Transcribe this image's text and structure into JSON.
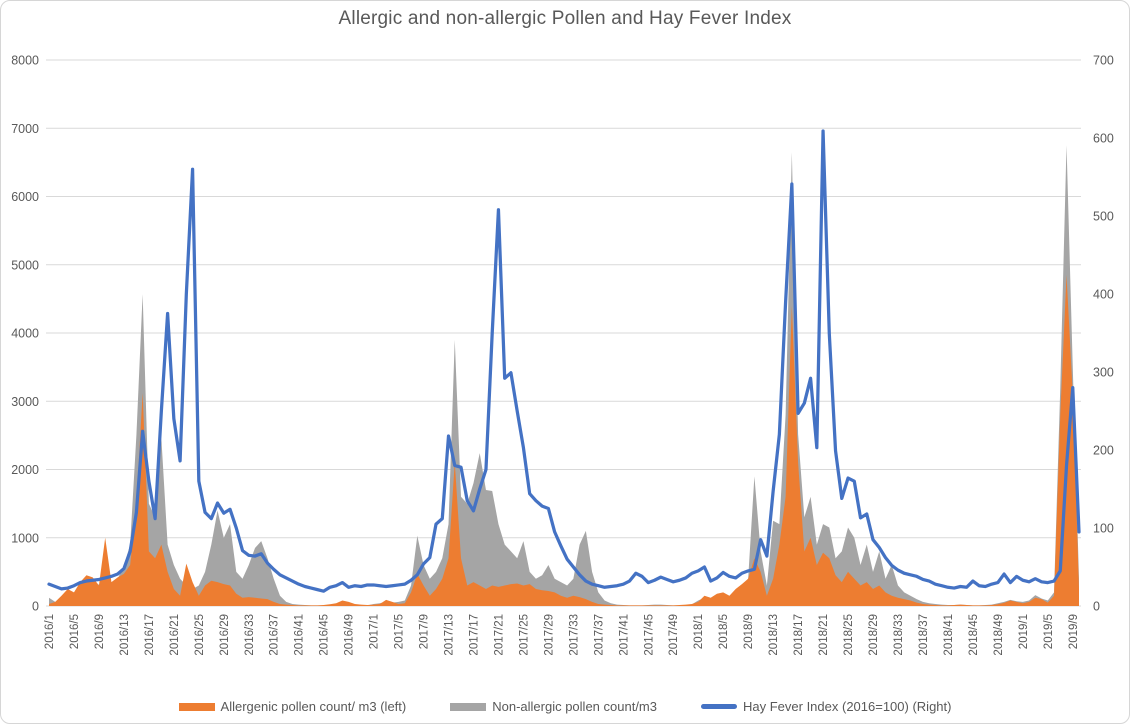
{
  "title": "Allergic and non-allergic Pollen and Hay Fever Index",
  "colors": {
    "allergenic": "#ED7D31",
    "non_allergic": "#A5A5A5",
    "hay_fever": "#4472C4",
    "gridline": "#D9D9D9",
    "axis_text": "#595959"
  },
  "legend": [
    {
      "label": "Allergenic pollen count/ m3 (left)",
      "color": "#ED7D31",
      "shape": "area"
    },
    {
      "label": "Non-allergic pollen count/m3",
      "color": "#A5A5A5",
      "shape": "area"
    },
    {
      "label": "Hay Fever Index (2016=100) (Right)",
      "color": "#4472C4",
      "shape": "line"
    }
  ],
  "chart_data": {
    "type": "area",
    "subtype": "combo-area-line-weekly",
    "title": "Allergic and non-allergic Pollen and Hay Fever Index",
    "points": 166,
    "x_start": "2016 week 1",
    "x_end": "2019 week 10",
    "weeks_per_tick": 4,
    "grid": "horizontal-only",
    "legend_position": "bottom-center",
    "left_axis": {
      "max": 8000,
      "ticks": [
        0,
        1000,
        2000,
        3000,
        4000,
        5000,
        6000,
        7000,
        8000
      ]
    },
    "right_axis": {
      "max": 700,
      "ticks": [
        0,
        100,
        200,
        300,
        400,
        500,
        600,
        700
      ]
    },
    "x_tick_labels": [
      "2016/1",
      "2016/5",
      "2016/9",
      "2016/13",
      "2016/17",
      "2016/21",
      "2016/25",
      "2016/29",
      "2016/33",
      "2016/37",
      "2016/41",
      "2016/45",
      "2016/49",
      "2017/1",
      "2017/5",
      "2017/9",
      "2017/13",
      "2017/17",
      "2017/21",
      "2017/25",
      "2017/29",
      "2017/33",
      "2017/37",
      "2017/41",
      "2017/45",
      "2017/49",
      "2018/1",
      "2018/5",
      "2018/9",
      "2018/13",
      "2018/17",
      "2018/21",
      "2018/25",
      "2018/29",
      "2018/33",
      "2018/37",
      "2018/41",
      "2018/45",
      "2018/49",
      "2019/1",
      "2019/5",
      "2019/9"
    ],
    "series": [
      {
        "name": "Non-allergic pollen count/m3",
        "type": "area",
        "axis": "left",
        "color": "#A5A5A5",
        "values": [
          120,
          60,
          40,
          50,
          80,
          100,
          150,
          200,
          320,
          250,
          300,
          400,
          590,
          900,
          2500,
          4570,
          1500,
          1300,
          2460,
          900,
          600,
          400,
          300,
          250,
          300,
          500,
          900,
          1400,
          1000,
          1200,
          500,
          400,
          600,
          850,
          950,
          700,
          400,
          150,
          60,
          30,
          20,
          15,
          10,
          10,
          10,
          10,
          15,
          20,
          20,
          15,
          10,
          10,
          30,
          40,
          60,
          50,
          60,
          80,
          300,
          1030,
          600,
          400,
          500,
          700,
          1200,
          3900,
          1600,
          1500,
          1800,
          2240,
          1700,
          1685,
          1200,
          900,
          800,
          700,
          950,
          500,
          400,
          450,
          600,
          400,
          350,
          300,
          400,
          900,
          1100,
          500,
          200,
          80,
          40,
          20,
          15,
          10,
          10,
          10,
          15,
          20,
          20,
          15,
          10,
          10,
          15,
          25,
          80,
          120,
          100,
          150,
          180,
          130,
          200,
          300,
          400,
          1900,
          800,
          300,
          1250,
          1200,
          2800,
          6650,
          2520,
          1300,
          1600,
          900,
          1200,
          1150,
          700,
          800,
          1150,
          1000,
          600,
          900,
          500,
          800,
          400,
          600,
          300,
          200,
          150,
          100,
          60,
          40,
          30,
          20,
          15,
          15,
          20,
          15,
          10,
          10,
          15,
          20,
          40,
          60,
          90,
          70,
          60,
          80,
          160,
          110,
          80,
          200,
          3200,
          6750,
          3500,
          400
        ]
      },
      {
        "name": "Allergenic pollen count/ m3 (left)",
        "type": "area",
        "axis": "left",
        "color": "#ED7D31",
        "values": [
          30,
          60,
          150,
          250,
          200,
          350,
          450,
          420,
          300,
          1000,
          350,
          420,
          470,
          600,
          1500,
          3120,
          800,
          700,
          900,
          500,
          250,
          150,
          620,
          350,
          150,
          300,
          370,
          350,
          320,
          300,
          180,
          120,
          130,
          120,
          110,
          100,
          60,
          30,
          20,
          15,
          10,
          10,
          10,
          10,
          15,
          25,
          40,
          80,
          60,
          30,
          20,
          15,
          20,
          30,
          90,
          60,
          30,
          40,
          200,
          470,
          300,
          150,
          250,
          400,
          700,
          2100,
          700,
          300,
          350,
          300,
          250,
          300,
          280,
          300,
          320,
          330,
          300,
          320,
          250,
          230,
          220,
          200,
          150,
          120,
          150,
          130,
          100,
          60,
          30,
          20,
          15,
          10,
          10,
          10,
          10,
          10,
          10,
          10,
          10,
          10,
          10,
          15,
          20,
          30,
          60,
          150,
          120,
          180,
          200,
          150,
          250,
          320,
          400,
          700,
          500,
          150,
          400,
          900,
          1600,
          4400,
          2100,
          800,
          1000,
          600,
          780,
          700,
          450,
          350,
          500,
          400,
          300,
          350,
          250,
          300,
          200,
          150,
          120,
          100,
          80,
          50,
          30,
          20,
          15,
          10,
          10,
          15,
          20,
          15,
          10,
          10,
          10,
          15,
          25,
          45,
          80,
          60,
          40,
          60,
          120,
          100,
          50,
          150,
          2800,
          4850,
          3100,
          250
        ]
      },
      {
        "name": "Hay Fever Index (2016=100) (Right)",
        "type": "line",
        "axis": "right",
        "color": "#4472C4",
        "values": [
          28,
          25,
          22,
          23,
          26,
          30,
          32,
          33,
          34,
          36,
          38,
          41,
          48,
          70,
          120,
          224,
          160,
          112,
          250,
          375,
          240,
          186,
          400,
          560,
          160,
          120,
          112,
          132,
          119,
          124,
          100,
          71,
          65,
          64,
          67,
          55,
          47,
          40,
          36,
          32,
          28,
          25,
          23,
          21,
          19,
          24,
          26,
          30,
          24,
          26,
          25,
          27,
          27,
          26,
          25,
          26,
          27,
          28,
          33,
          40,
          54,
          62,
          105,
          112,
          218,
          180,
          178,
          135,
          122,
          150,
          175,
          350,
          508,
          292,
          299,
          250,
          203,
          144,
          135,
          128,
          125,
          95,
          77,
          60,
          50,
          40,
          32,
          28,
          26,
          24,
          25,
          26,
          28,
          32,
          42,
          38,
          30,
          33,
          37,
          34,
          31,
          33,
          36,
          42,
          45,
          50,
          32,
          36,
          43,
          38,
          36,
          42,
          45,
          47,
          85,
          64,
          147,
          220,
          390,
          541,
          247,
          260,
          292,
          203,
          609,
          349,
          199,
          138,
          164,
          160,
          113,
          118,
          85,
          75,
          62,
          52,
          46,
          42,
          40,
          38,
          34,
          32,
          28,
          26,
          24,
          23,
          25,
          24,
          32,
          26,
          25,
          28,
          30,
          41,
          30,
          38,
          33,
          31,
          35,
          31,
          30,
          32,
          45,
          180,
          280,
          95
        ]
      }
    ]
  }
}
